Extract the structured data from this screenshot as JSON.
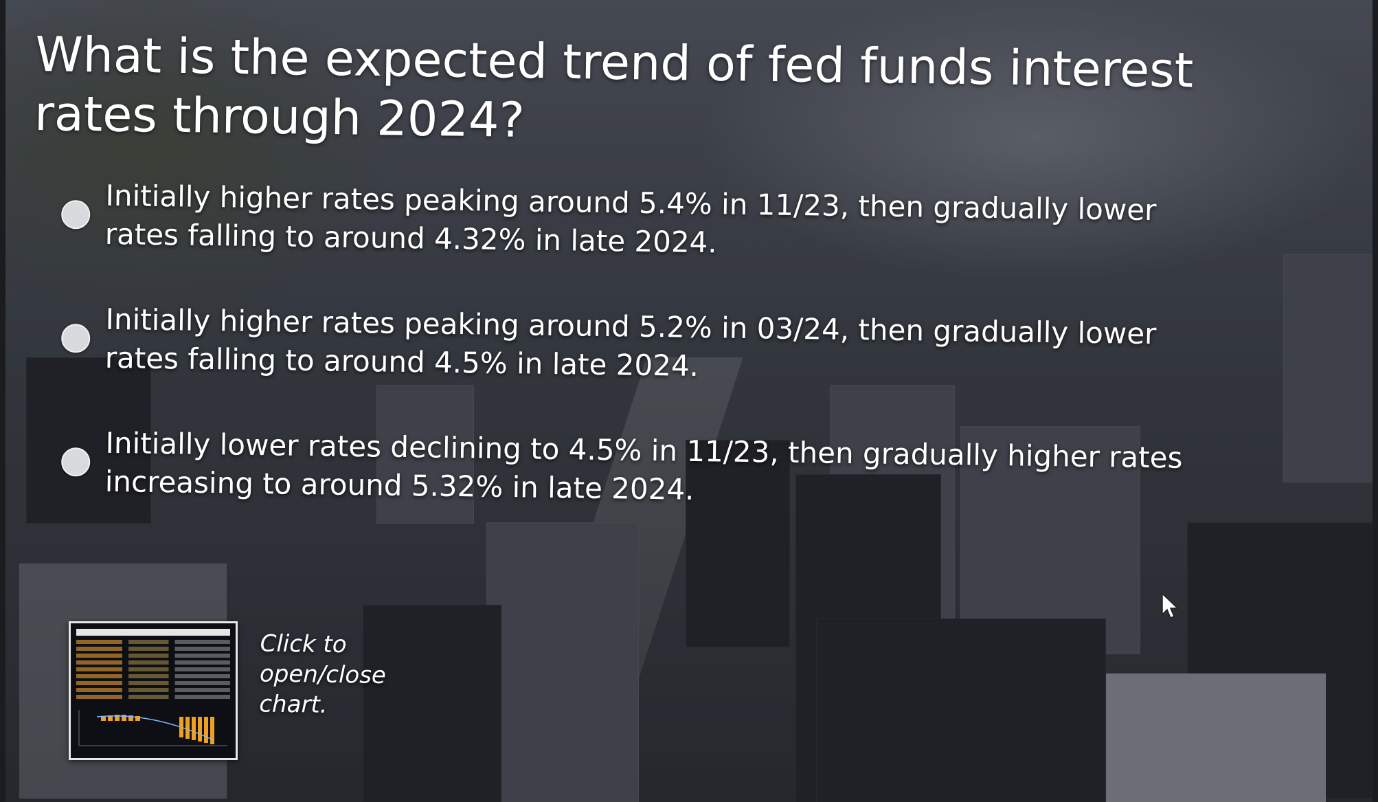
{
  "question": {
    "text": "What is the expected trend of fed funds interest rates through 2024?"
  },
  "options": [
    {
      "label": "Initially higher rates peaking around 5.4% in 11/23, then gradually lower rates falling to around 4.32% in late 2024.",
      "selected": false
    },
    {
      "label": "Initially higher rates peaking around 5.2% in 03/24, then gradually lower rates falling to around 4.5% in late 2024.",
      "selected": false
    },
    {
      "label": "Initially lower rates declining to 4.5% in 11/23, then gradually higher rates increasing to around 5.32% in late 2024.",
      "selected": false
    }
  ],
  "chart_toggle": {
    "label": "Click to open/close chart."
  },
  "colors": {
    "text": "#ffffff",
    "radio": "#d9dadd",
    "thumb_bars": "#f0a020",
    "thumb_border": "#e8e8e8"
  }
}
